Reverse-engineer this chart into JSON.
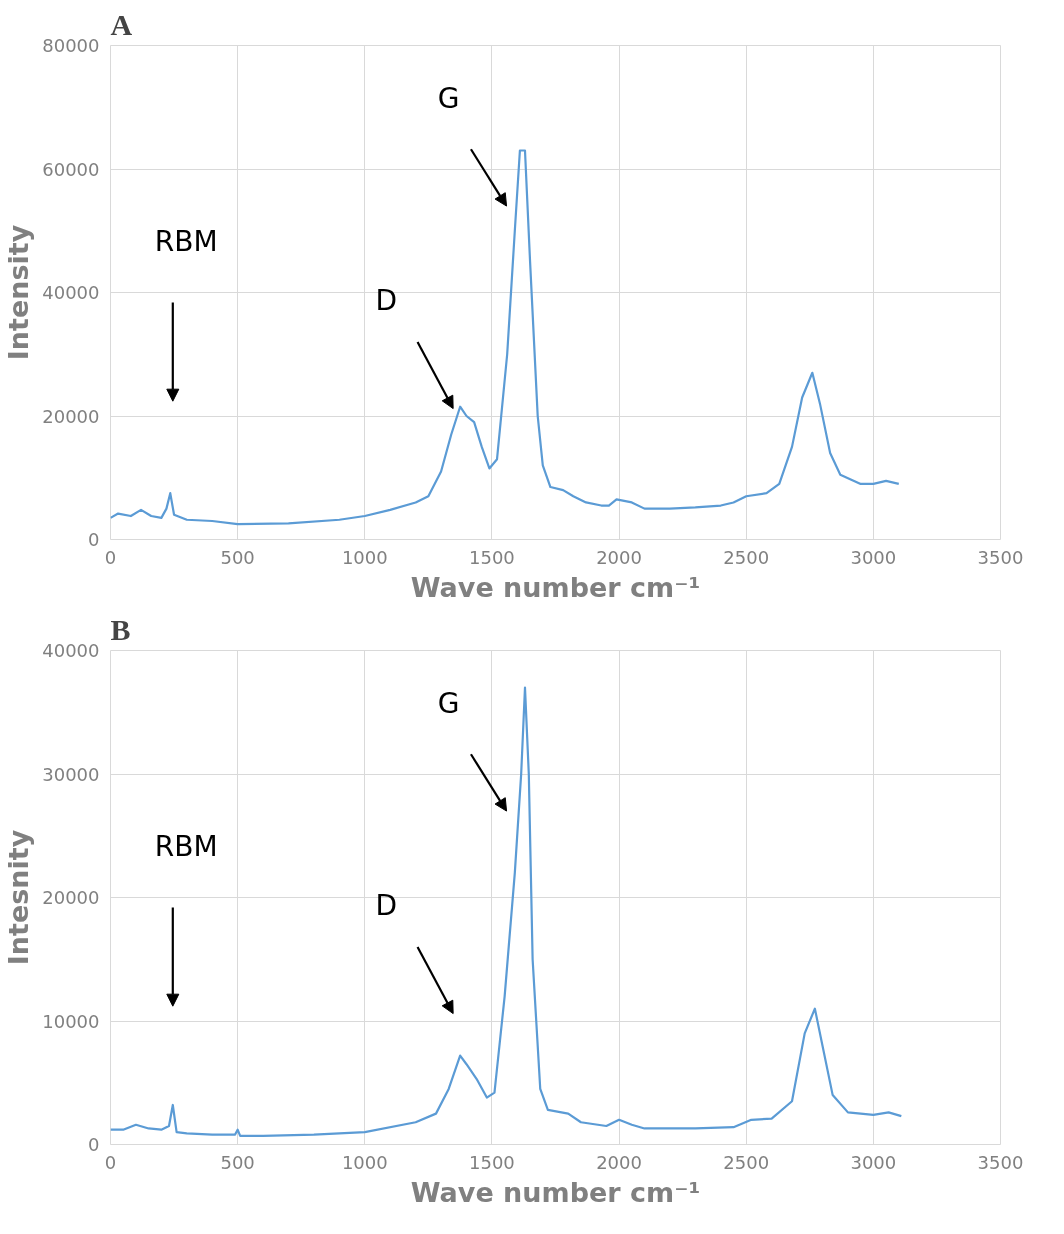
{
  "chart_data": [
    {
      "type": "line",
      "title": "A",
      "xlabel": "Wave number cm⁻¹",
      "ylabel": "Intensity",
      "xlim": [
        0,
        3500
      ],
      "xticks": [
        0,
        500,
        1000,
        1500,
        2000,
        2500,
        3000,
        3500
      ],
      "ylim": [
        0,
        80000
      ],
      "yticks": [
        0,
        20000,
        40000,
        60000,
        80000
      ],
      "grid": true,
      "series": [
        {
          "color": "#5b9bd5",
          "x": [
            0,
            30,
            80,
            120,
            160,
            200,
            220,
            235,
            250,
            300,
            400,
            500,
            700,
            900,
            1000,
            1100,
            1200,
            1250,
            1300,
            1340,
            1375,
            1400,
            1430,
            1460,
            1490,
            1520,
            1560,
            1590,
            1610,
            1630,
            1650,
            1680,
            1700,
            1730,
            1780,
            1820,
            1870,
            1930,
            1960,
            1990,
            2050,
            2100,
            2200,
            2300,
            2400,
            2450,
            2500,
            2580,
            2630,
            2680,
            2720,
            2760,
            2790,
            2830,
            2870,
            2950,
            3000,
            3050,
            3100
          ],
          "values": [
            3500,
            4200,
            3800,
            4800,
            3800,
            3500,
            5000,
            7500,
            4000,
            3200,
            3000,
            2500,
            2600,
            3200,
            3800,
            4800,
            6000,
            7000,
            11000,
            17000,
            21500,
            20000,
            19000,
            15000,
            11500,
            13000,
            30000,
            50000,
            63000,
            63000,
            45000,
            20000,
            12000,
            8500,
            8000,
            7000,
            6000,
            5500,
            5500,
            6500,
            6000,
            5000,
            5000,
            5200,
            5500,
            6000,
            7000,
            7500,
            9000,
            15000,
            23000,
            27000,
            22000,
            14000,
            10500,
            9000,
            9000,
            9500,
            9000
          ]
        }
      ],
      "annotations": [
        "G",
        "D",
        "RBM"
      ]
    },
    {
      "type": "line",
      "title": "B",
      "xlabel": "Wave number cm⁻¹",
      "ylabel": "Intesnity",
      "xlim": [
        0,
        3500
      ],
      "xticks": [
        0,
        500,
        1000,
        1500,
        2000,
        2500,
        3000,
        3500
      ],
      "ylim": [
        0,
        40000
      ],
      "yticks": [
        0,
        10000,
        20000,
        30000,
        40000
      ],
      "grid": true,
      "series": [
        {
          "color": "#5b9bd5",
          "x": [
            0,
            50,
            100,
            150,
            200,
            230,
            245,
            260,
            300,
            400,
            490,
            500,
            510,
            600,
            800,
            1000,
            1200,
            1280,
            1330,
            1375,
            1400,
            1440,
            1480,
            1510,
            1550,
            1590,
            1615,
            1630,
            1645,
            1660,
            1690,
            1720,
            1800,
            1850,
            1950,
            2000,
            2050,
            2100,
            2300,
            2450,
            2520,
            2600,
            2680,
            2730,
            2770,
            2800,
            2840,
            2900,
            3000,
            3060,
            3110
          ],
          "values": [
            1200,
            1200,
            1600,
            1300,
            1200,
            1500,
            3200,
            1000,
            900,
            800,
            800,
            1200,
            700,
            700,
            800,
            1000,
            1800,
            2500,
            4500,
            7200,
            6500,
            5300,
            3800,
            4200,
            12000,
            22000,
            30000,
            37000,
            30000,
            15000,
            4500,
            2800,
            2500,
            1800,
            1500,
            2000,
            1600,
            1300,
            1300,
            1400,
            2000,
            2100,
            3500,
            9000,
            11000,
            8000,
            4000,
            2600,
            2400,
            2600,
            2300
          ]
        }
      ],
      "annotations": [
        "G",
        "D",
        "RBM"
      ]
    }
  ]
}
